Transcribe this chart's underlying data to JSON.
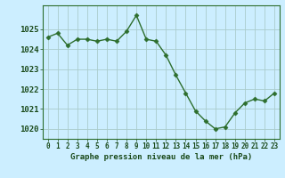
{
  "x": [
    0,
    1,
    2,
    3,
    4,
    5,
    6,
    7,
    8,
    9,
    10,
    11,
    12,
    13,
    14,
    15,
    16,
    17,
    18,
    19,
    20,
    21,
    22,
    23
  ],
  "y": [
    1024.6,
    1024.8,
    1024.2,
    1024.5,
    1024.5,
    1024.4,
    1024.5,
    1024.4,
    1024.9,
    1025.7,
    1024.5,
    1024.4,
    1023.7,
    1022.7,
    1021.8,
    1020.9,
    1020.4,
    1020.0,
    1020.1,
    1020.8,
    1021.3,
    1021.5,
    1021.4,
    1021.8
  ],
  "line_color": "#2d6e2d",
  "marker_color": "#2d6e2d",
  "bg_color": "#cceeff",
  "grid_color": "#aacccc",
  "xlabel": "Graphe pression niveau de la mer (hPa)",
  "ylim": [
    1019.5,
    1026.2
  ],
  "xlim": [
    -0.5,
    23.5
  ],
  "yticks": [
    1020,
    1021,
    1022,
    1023,
    1024,
    1025
  ],
  "xticks": [
    0,
    1,
    2,
    3,
    4,
    5,
    6,
    7,
    8,
    9,
    10,
    11,
    12,
    13,
    14,
    15,
    16,
    17,
    18,
    19,
    20,
    21,
    22,
    23
  ],
  "xtick_labels": [
    "0",
    "1",
    "2",
    "3",
    "4",
    "5",
    "6",
    "7",
    "8",
    "9",
    "10",
    "11",
    "12",
    "13",
    "14",
    "15",
    "16",
    "17",
    "18",
    "19",
    "20",
    "21",
    "22",
    "23"
  ],
  "label_color": "#1a4a1a",
  "label_fontsize": 6.5,
  "ytick_fontsize": 6.5,
  "xtick_fontsize": 5.5
}
